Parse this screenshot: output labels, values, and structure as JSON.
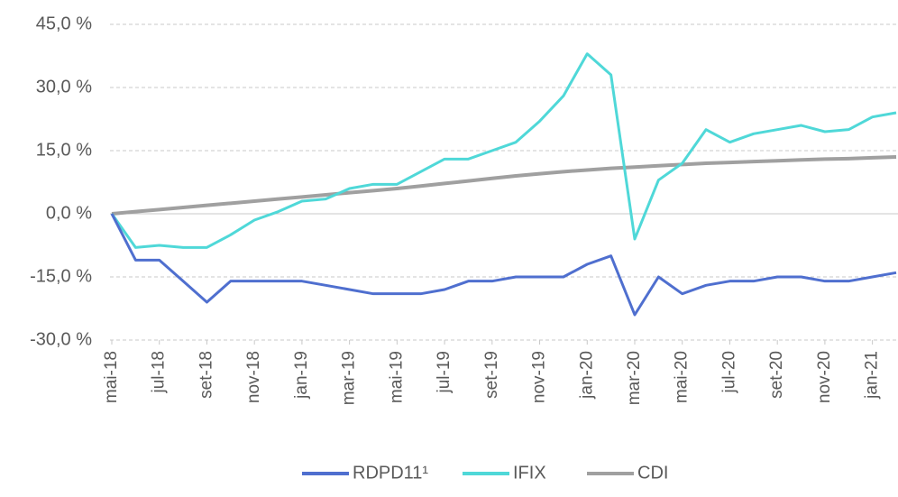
{
  "chart_data": {
    "type": "line",
    "categories": [
      "mai-18",
      null,
      "jul-18",
      null,
      "set-18",
      null,
      "nov-18",
      null,
      "jan-19",
      null,
      "mar-19",
      null,
      "mai-19",
      null,
      "jul-19",
      null,
      "set-19",
      null,
      "nov-19",
      null,
      "jan-20",
      null,
      "mar-20",
      null,
      "mai-20",
      null,
      "jul-20",
      null,
      "set-20",
      null,
      "nov-20",
      null,
      "jan-21",
      null
    ],
    "series": [
      {
        "name": "RDPD11¹",
        "color": "#4f6fcf",
        "values": [
          0,
          -11,
          -11,
          -16,
          -21,
          -16,
          -16,
          -16,
          -16,
          -17,
          -18,
          -19,
          -19,
          -19,
          -18,
          -16,
          -16,
          -15,
          -15,
          -15,
          -12,
          -10,
          -24,
          -15,
          -19,
          -17,
          -16,
          -16,
          -15,
          -15,
          -16,
          -16,
          -15,
          -14
        ]
      },
      {
        "name": "IFIX",
        "color": "#4fd8d8",
        "values": [
          0,
          -8,
          -7.5,
          -8,
          -8,
          -5,
          -1.5,
          0.5,
          3,
          3.5,
          6,
          7,
          7,
          10,
          13,
          13,
          15,
          17,
          22,
          28,
          38,
          33,
          -6,
          8,
          12,
          20,
          17,
          19,
          20,
          21,
          19.5,
          20,
          23,
          24
        ]
      },
      {
        "name": "CDI",
        "color": "#a0a0a0",
        "values": [
          0,
          0.5,
          1,
          1.5,
          2,
          2.5,
          3,
          3.5,
          4,
          4.5,
          5,
          5.5,
          6,
          6.6,
          7.2,
          7.8,
          8.4,
          9,
          9.5,
          10,
          10.4,
          10.8,
          11.1,
          11.4,
          11.7,
          12,
          12.2,
          12.4,
          12.6,
          12.8,
          13,
          13.1,
          13.3,
          13.5
        ]
      }
    ],
    "ylim": [
      -30,
      45
    ],
    "yticks": [
      {
        "value": -30,
        "label": "-30,0 %"
      },
      {
        "value": -15,
        "label": "-15,0 %"
      },
      {
        "value": 0,
        "label": "0,0 %"
      },
      {
        "value": 15,
        "label": "15,0 %"
      },
      {
        "value": 30,
        "label": "30,0 %"
      },
      {
        "value": 45,
        "label": "45,0 %"
      }
    ],
    "grid": true,
    "legend": "bottom"
  }
}
